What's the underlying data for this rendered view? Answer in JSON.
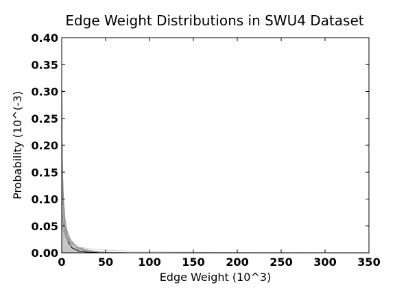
{
  "chart_data": {
    "type": "line",
    "title": "Edge Weight Distributions in SWU4 Dataset",
    "xlabel": "Edge Weight (10^3)",
    "ylabel": "Probability (10^(-3)",
    "xlim": [
      0,
      350
    ],
    "ylim": [
      0,
      0.4
    ],
    "x_ticks": [
      0,
      50,
      100,
      150,
      200,
      250,
      300,
      350
    ],
    "x_tick_labels": [
      "0",
      "50",
      "100",
      "150",
      "200",
      "250",
      "300",
      "350"
    ],
    "y_ticks": [
      0,
      0.05,
      0.1,
      0.15,
      0.2,
      0.25,
      0.3,
      0.35,
      0.4
    ],
    "y_tick_labels": [
      "0.00",
      "0.05",
      "0.10",
      "0.15",
      "0.20",
      "0.25",
      "0.30",
      "0.35",
      "0.40"
    ],
    "grid": false,
    "line_color": "#808080",
    "series": [
      {
        "color": "#111111",
        "x": [
          0,
          0.5,
          1,
          2,
          3,
          5,
          8,
          12,
          20,
          30,
          45
        ],
        "y": [
          0.305,
          0.2,
          0.14,
          0.09,
          0.06,
          0.035,
          0.018,
          0.009,
          0.003,
          0.001,
          0.0
        ]
      },
      {
        "color": "#999999",
        "x": [
          0,
          1,
          2,
          4,
          6,
          10,
          15,
          20,
          30,
          40,
          60
        ],
        "y": [
          0.26,
          0.15,
          0.1,
          0.06,
          0.042,
          0.025,
          0.015,
          0.01,
          0.005,
          0.002,
          0.0
        ]
      },
      {
        "color": "#8c8c8c",
        "x": [
          0,
          1,
          2,
          4,
          7,
          10,
          15,
          22,
          30,
          45,
          60
        ],
        "y": [
          0.2,
          0.12,
          0.08,
          0.05,
          0.032,
          0.022,
          0.014,
          0.008,
          0.004,
          0.001,
          0.0
        ]
      },
      {
        "color": "#a6a6a6",
        "x": [
          0,
          1,
          3,
          5,
          8,
          12,
          18,
          25,
          35,
          50,
          70
        ],
        "y": [
          0.16,
          0.1,
          0.06,
          0.04,
          0.026,
          0.017,
          0.011,
          0.006,
          0.003,
          0.001,
          0.0
        ]
      },
      {
        "color": "#7f7f7f",
        "x": [
          0,
          1,
          3,
          5,
          8,
          12,
          18,
          25,
          35,
          50,
          70
        ],
        "y": [
          0.13,
          0.08,
          0.05,
          0.035,
          0.022,
          0.015,
          0.009,
          0.005,
          0.0025,
          0.0008,
          0.0
        ]
      },
      {
        "color": "#b3b3b3",
        "x": [
          0,
          2,
          4,
          6,
          10,
          15,
          22,
          30,
          40,
          55,
          75
        ],
        "y": [
          0.1,
          0.06,
          0.04,
          0.03,
          0.02,
          0.013,
          0.008,
          0.005,
          0.002,
          0.0006,
          0.0
        ]
      },
      {
        "color": "#8f8f8f",
        "x": [
          0,
          2,
          4,
          6,
          10,
          15,
          22,
          30,
          40,
          55,
          75
        ],
        "y": [
          0.08,
          0.05,
          0.035,
          0.026,
          0.018,
          0.012,
          0.007,
          0.004,
          0.002,
          0.0005,
          0.0
        ]
      },
      {
        "color": "#a0a0a0",
        "x": [
          0,
          2,
          5,
          8,
          12,
          18,
          25,
          35,
          45,
          60,
          80
        ],
        "y": [
          0.06,
          0.04,
          0.028,
          0.021,
          0.015,
          0.01,
          0.006,
          0.0035,
          0.0018,
          0.0005,
          0.0
        ]
      },
      {
        "color": "#cfcfcf",
        "x": [
          0,
          5,
          10,
          20,
          30,
          50,
          80,
          120,
          180,
          250,
          350
        ],
        "y": [
          0.018,
          0.016,
          0.014,
          0.011,
          0.008,
          0.005,
          0.003,
          0.0015,
          0.0006,
          0.0002,
          0.0
        ]
      }
    ]
  }
}
